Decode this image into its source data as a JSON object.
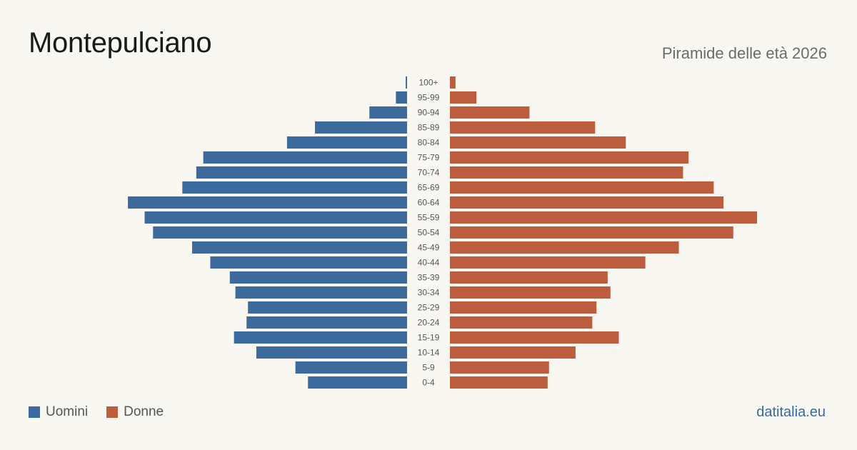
{
  "header": {
    "title": "Montepulciano",
    "subtitle": "Piramide delle età 2026"
  },
  "legend": {
    "men_label": "Uomini",
    "women_label": "Donne"
  },
  "brand": "datitalia.eu",
  "colors": {
    "men": "#3c6a9c",
    "women": "#bc5e3d",
    "background": "#f9f7f2",
    "label": "#555555"
  },
  "chart_data": {
    "type": "bar",
    "orientation": "horizontal-pyramid",
    "categories": [
      "100+",
      "95-99",
      "90-94",
      "85-89",
      "80-84",
      "75-79",
      "70-74",
      "65-69",
      "60-64",
      "55-59",
      "50-54",
      "45-49",
      "40-44",
      "35-39",
      "30-34",
      "25-29",
      "20-24",
      "15-19",
      "10-14",
      "5-9",
      "0-4"
    ],
    "series": [
      {
        "name": "Uomini",
        "values": [
          1,
          8,
          27,
          66,
          86,
          146,
          151,
          161,
          200,
          188,
          182,
          154,
          141,
          127,
          123,
          114,
          115,
          124,
          108,
          80,
          71
        ]
      },
      {
        "name": "Donne",
        "values": [
          4,
          19,
          57,
          104,
          126,
          171,
          167,
          189,
          196,
          220,
          203,
          164,
          140,
          113,
          115,
          105,
          102,
          121,
          90,
          71,
          70
        ]
      }
    ],
    "xlim": [
      0,
      220
    ],
    "grid": false,
    "legend_position": "bottom-left"
  }
}
